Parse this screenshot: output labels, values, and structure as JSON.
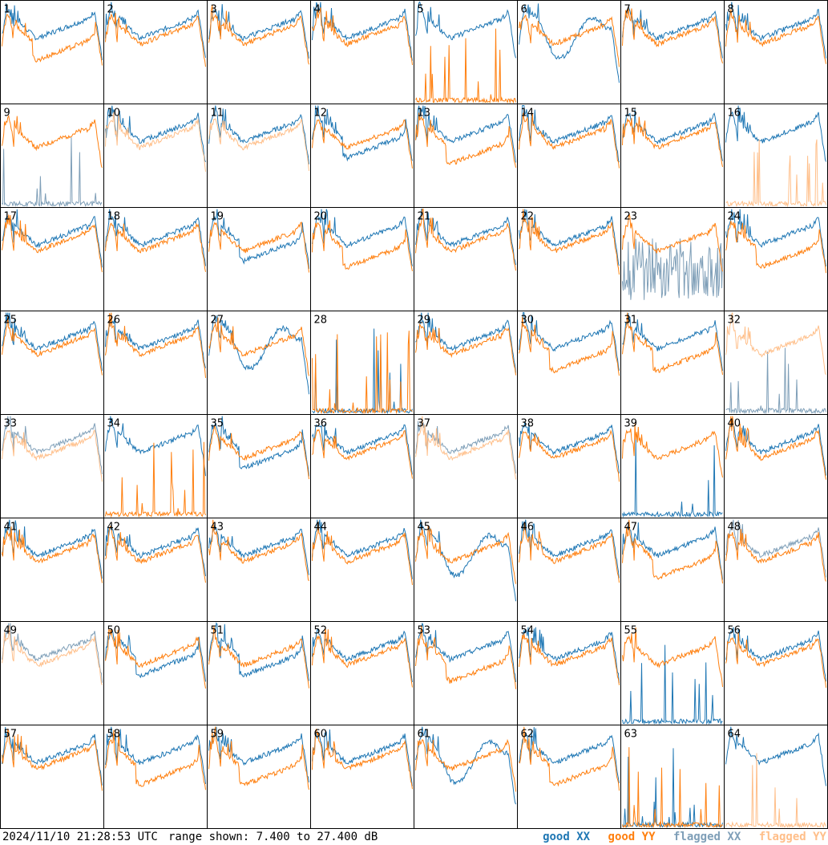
{
  "chart_data": {
    "type": "line",
    "grid_layout": "8x8 small multiples",
    "panels": [
      {
        "label": "1",
        "xx": "good",
        "yy": "good",
        "yy_shape": "drop"
      },
      {
        "label": "2",
        "xx": "good",
        "yy": "good"
      },
      {
        "label": "3",
        "xx": "good",
        "yy": "good"
      },
      {
        "label": "4",
        "xx": "good",
        "yy": "good"
      },
      {
        "label": "5",
        "xx": "good",
        "yy": "good",
        "yy_shape": "dead"
      },
      {
        "label": "6",
        "xx": "good",
        "yy": "good",
        "xx_shape": "wavy"
      },
      {
        "label": "7",
        "xx": "good",
        "yy": "good"
      },
      {
        "label": "8",
        "xx": "good",
        "yy": "good"
      },
      {
        "label": "9",
        "xx": "flagged",
        "yy": "good",
        "xx_shape": "dead"
      },
      {
        "label": "10",
        "xx": "good",
        "yy": "flagged"
      },
      {
        "label": "11",
        "xx": "good",
        "yy": "flagged"
      },
      {
        "label": "12",
        "xx": "good",
        "yy": "good",
        "xx_shape": "drop"
      },
      {
        "label": "13",
        "xx": "good",
        "yy": "good",
        "yy_shape": "drop"
      },
      {
        "label": "14",
        "xx": "good",
        "yy": "good"
      },
      {
        "label": "15",
        "xx": "good",
        "yy": "good"
      },
      {
        "label": "16",
        "xx": "good",
        "yy": "flagged",
        "yy_shape": "dead"
      },
      {
        "label": "17",
        "xx": "good",
        "yy": "good"
      },
      {
        "label": "18",
        "xx": "good",
        "yy": "good"
      },
      {
        "label": "19",
        "xx": "good",
        "yy": "good",
        "xx_shape": "drop"
      },
      {
        "label": "20",
        "xx": "good",
        "yy": "good",
        "yy_shape": "drop"
      },
      {
        "label": "21",
        "xx": "good",
        "yy": "good"
      },
      {
        "label": "22",
        "xx": "good",
        "yy": "good"
      },
      {
        "label": "23",
        "xx": "flagged",
        "yy": "good",
        "xx_shape": "noisy"
      },
      {
        "label": "24",
        "xx": "good",
        "yy": "good",
        "yy_shape": "drop"
      },
      {
        "label": "25",
        "xx": "good",
        "yy": "good"
      },
      {
        "label": "26",
        "xx": "good",
        "yy": "good"
      },
      {
        "label": "27",
        "xx": "good",
        "yy": "good",
        "xx_shape": "wavy"
      },
      {
        "label": "28",
        "xx": "good",
        "yy": "good",
        "xx_shape": "dead",
        "yy_shape": "dead"
      },
      {
        "label": "29",
        "xx": "good",
        "yy": "good"
      },
      {
        "label": "30",
        "xx": "good",
        "yy": "good",
        "yy_shape": "drop"
      },
      {
        "label": "31",
        "xx": "good",
        "yy": "good",
        "yy_shape": "drop"
      },
      {
        "label": "32",
        "xx": "flagged",
        "yy": "flagged",
        "xx_shape": "dead"
      },
      {
        "label": "33",
        "xx": "flagged",
        "yy": "flagged"
      },
      {
        "label": "34",
        "xx": "good",
        "yy": "good",
        "yy_shape": "dead"
      },
      {
        "label": "35",
        "xx": "good",
        "yy": "good",
        "xx_shape": "drop"
      },
      {
        "label": "36",
        "xx": "good",
        "yy": "good"
      },
      {
        "label": "37",
        "xx": "flagged",
        "yy": "flagged"
      },
      {
        "label": "38",
        "xx": "good",
        "yy": "good"
      },
      {
        "label": "39",
        "xx": "good",
        "yy": "good",
        "xx_shape": "dead"
      },
      {
        "label": "40",
        "xx": "good",
        "yy": "good"
      },
      {
        "label": "41",
        "xx": "good",
        "yy": "good"
      },
      {
        "label": "42",
        "xx": "good",
        "yy": "good"
      },
      {
        "label": "43",
        "xx": "good",
        "yy": "good"
      },
      {
        "label": "44",
        "xx": "good",
        "yy": "good"
      },
      {
        "label": "45",
        "xx": "good",
        "yy": "good",
        "xx_shape": "wavy"
      },
      {
        "label": "46",
        "xx": "good",
        "yy": "good"
      },
      {
        "label": "47",
        "xx": "good",
        "yy": "good",
        "yy_shape": "drop"
      },
      {
        "label": "48",
        "xx": "flagged",
        "yy": "good"
      },
      {
        "label": "49",
        "xx": "flagged",
        "yy": "flagged"
      },
      {
        "label": "50",
        "xx": "good",
        "yy": "good",
        "xx_shape": "drop"
      },
      {
        "label": "51",
        "xx": "good",
        "yy": "good",
        "xx_shape": "drop"
      },
      {
        "label": "52",
        "xx": "good",
        "yy": "good"
      },
      {
        "label": "53",
        "xx": "good",
        "yy": "good",
        "yy_shape": "drop"
      },
      {
        "label": "54",
        "xx": "good",
        "yy": "good"
      },
      {
        "label": "55",
        "xx": "good",
        "yy": "good",
        "xx_shape": "dead"
      },
      {
        "label": "56",
        "xx": "good",
        "yy": "good"
      },
      {
        "label": "57",
        "xx": "good",
        "yy": "good"
      },
      {
        "label": "58",
        "xx": "good",
        "yy": "good",
        "yy_shape": "drop"
      },
      {
        "label": "59",
        "xx": "good",
        "yy": "good",
        "yy_shape": "drop"
      },
      {
        "label": "60",
        "xx": "good",
        "yy": "good"
      },
      {
        "label": "61",
        "xx": "good",
        "yy": "good",
        "xx_shape": "wavy"
      },
      {
        "label": "62",
        "xx": "good",
        "yy": "good",
        "yy_shape": "drop"
      },
      {
        "label": "63",
        "xx": "good",
        "yy": "good",
        "xx_shape": "dead",
        "yy_shape": "dead"
      },
      {
        "label": "64",
        "xx": "good",
        "yy": "flagged",
        "yy_shape": "dead"
      }
    ],
    "range_db": [
      7.4,
      27.4
    ],
    "colors": {
      "good_xx": "#1f77b4",
      "good_yy": "#ff7f0e",
      "flagged_xx": "#7f9fb8",
      "flagged_yy": "#ffbf8a"
    }
  },
  "footer": {
    "timestamp": "2024/11/10 21:28:53 UTC",
    "range_text": "range shown: 7.400 to 27.400 dB"
  },
  "legend": {
    "good_xx": "good XX",
    "good_yy": "good YY",
    "flagged_xx": "flagged XX",
    "flagged_yy": "flagged YY"
  }
}
